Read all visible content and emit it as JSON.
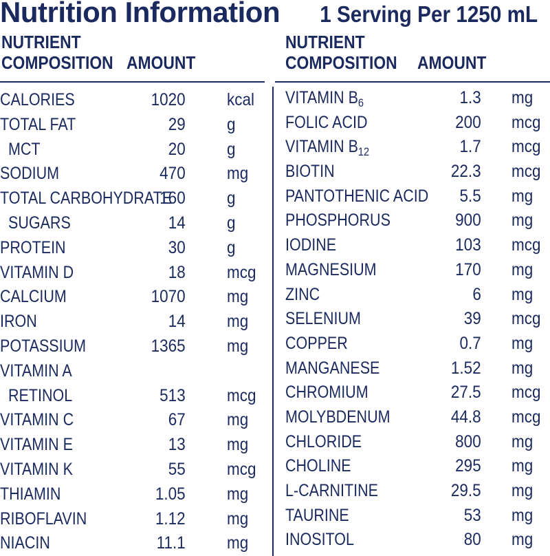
{
  "header": {
    "title": "Nutrition Information",
    "serving": "1 Serving Per 1250 mL"
  },
  "table": {
    "col_nutrient_line1": "NUTRIENT",
    "col_nutrient_line2": "COMPOSITION",
    "col_amount": "AMOUNT"
  },
  "left_rows": [
    {
      "name": "CALORIES",
      "amount": "1020",
      "unit": "kcal",
      "indent": false
    },
    {
      "name": "TOTAL FAT",
      "amount": "29",
      "unit": "g",
      "indent": false
    },
    {
      "name": "MCT",
      "amount": "20",
      "unit": "g",
      "indent": true
    },
    {
      "name": "SODIUM",
      "amount": "470",
      "unit": "mg",
      "indent": false
    },
    {
      "name": "TOTAL CARBOHYDRATE",
      "amount": "160",
      "unit": "g",
      "indent": false
    },
    {
      "name": "SUGARS",
      "amount": "14",
      "unit": "g",
      "indent": true
    },
    {
      "name": "PROTEIN",
      "amount": "30",
      "unit": "g",
      "indent": false
    },
    {
      "name": "VITAMIN D",
      "amount": "18",
      "unit": "mcg",
      "indent": false
    },
    {
      "name": "CALCIUM",
      "amount": "1070",
      "unit": "mg",
      "indent": false
    },
    {
      "name": "IRON",
      "amount": "14",
      "unit": "mg",
      "indent": false
    },
    {
      "name": "POTASSIUM",
      "amount": "1365",
      "unit": "mg",
      "indent": false
    },
    {
      "name": "VITAMIN A",
      "amount": "",
      "unit": "",
      "indent": false
    },
    {
      "name": "RETINOL",
      "amount": "513",
      "unit": "mcg",
      "indent": true
    },
    {
      "name": "VITAMIN C",
      "amount": "67",
      "unit": "mg",
      "indent": false
    },
    {
      "name": "VITAMIN E",
      "amount": "13",
      "unit": "mg",
      "indent": false
    },
    {
      "name": "VITAMIN K",
      "amount": "55",
      "unit": "mcg",
      "indent": false
    },
    {
      "name": "THIAMIN",
      "amount": "1.05",
      "unit": "mg",
      "indent": false
    },
    {
      "name": "RIBOFLAVIN",
      "amount": "1.12",
      "unit": "mg",
      "indent": false
    },
    {
      "name": "NIACIN",
      "amount": "11.1",
      "unit": "mg",
      "indent": false
    }
  ],
  "right_rows": [
    {
      "name": "VITAMIN B",
      "sub": "6",
      "amount": "1.3",
      "unit": "mg"
    },
    {
      "name": "FOLIC ACID",
      "sub": "",
      "amount": "200",
      "unit": "mcg"
    },
    {
      "name": "VITAMIN B",
      "sub": "12",
      "amount": "1.7",
      "unit": "mcg"
    },
    {
      "name": "BIOTIN",
      "sub": "",
      "amount": "22.3",
      "unit": "mcg"
    },
    {
      "name": "PANTOTHENIC ACID",
      "sub": "",
      "amount": "5.5",
      "unit": "mg"
    },
    {
      "name": "PHOSPHORUS",
      "sub": "",
      "amount": "900",
      "unit": "mg"
    },
    {
      "name": "IODINE",
      "sub": "",
      "amount": "103",
      "unit": "mcg"
    },
    {
      "name": "MAGNESIUM",
      "sub": "",
      "amount": "170",
      "unit": "mg"
    },
    {
      "name": "ZINC",
      "sub": "",
      "amount": "6",
      "unit": "mg"
    },
    {
      "name": "SELENIUM",
      "sub": "",
      "amount": "39",
      "unit": "mcg"
    },
    {
      "name": "COPPER",
      "sub": "",
      "amount": "0.7",
      "unit": "mg"
    },
    {
      "name": "MANGANESE",
      "sub": "",
      "amount": "1.52",
      "unit": "mg"
    },
    {
      "name": "CHROMIUM",
      "sub": "",
      "amount": "27.5",
      "unit": "mcg"
    },
    {
      "name": "MOLYBDENUM",
      "sub": "",
      "amount": "44.8",
      "unit": "mcg"
    },
    {
      "name": "CHLORIDE",
      "sub": "",
      "amount": "800",
      "unit": "mg"
    },
    {
      "name": "CHOLINE",
      "sub": "",
      "amount": "295",
      "unit": "mg"
    },
    {
      "name": "L-CARNITINE",
      "sub": "",
      "amount": "29.5",
      "unit": "mg"
    },
    {
      "name": "TAURINE",
      "sub": "",
      "amount": "53",
      "unit": "mg"
    },
    {
      "name": "INOSITOL",
      "sub": "",
      "amount": "80",
      "unit": "mg"
    }
  ]
}
